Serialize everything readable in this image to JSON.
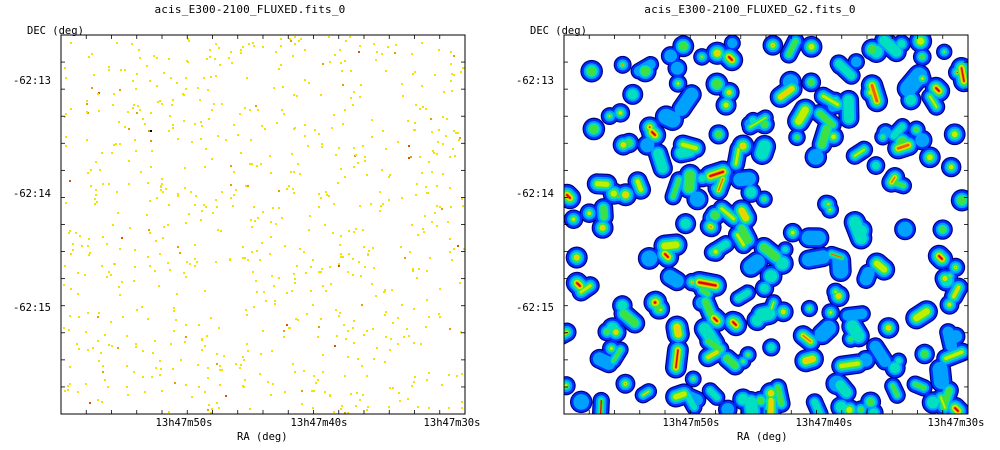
{
  "chart_data": [
    {
      "type": "image",
      "title": "acis_E300-2100_FLUXED.fits_0",
      "xlabel": "RA (deg)",
      "ylabel": "DEC (deg)",
      "x_ticks": [
        "13h47m50s",
        "13h47m40s",
        "13h47m30s"
      ],
      "y_ticks": [
        "-62:13",
        "-62:14",
        "-62:15"
      ],
      "colormap": [
        "#f0e400",
        "#e8a000",
        "#e05000",
        "#000000"
      ],
      "appearance": "sparse unsmoothed photon events: mostly isolated yellow pixels, a few orange/red, one black"
    },
    {
      "type": "image",
      "title": "acis_E300-2100_FLUXED_G2.fits_0",
      "xlabel": "RA (deg)",
      "ylabel": "DEC (deg)",
      "x_ticks": [
        "13h47m50s",
        "13h47m40s",
        "13h47m30s"
      ],
      "y_ticks": [
        "-62:13",
        "-62:14",
        "-62:15"
      ],
      "colormap": [
        "#000080",
        "#0030ff",
        "#00a0ff",
        "#00e0c0",
        "#40e040",
        "#c0f000",
        "#f0d000",
        "#f06000",
        "#e00000"
      ],
      "appearance": "Gaussian-smoothed events: connected blobs with blue outline, cyan/green/yellow interiors, red peaks"
    }
  ]
}
